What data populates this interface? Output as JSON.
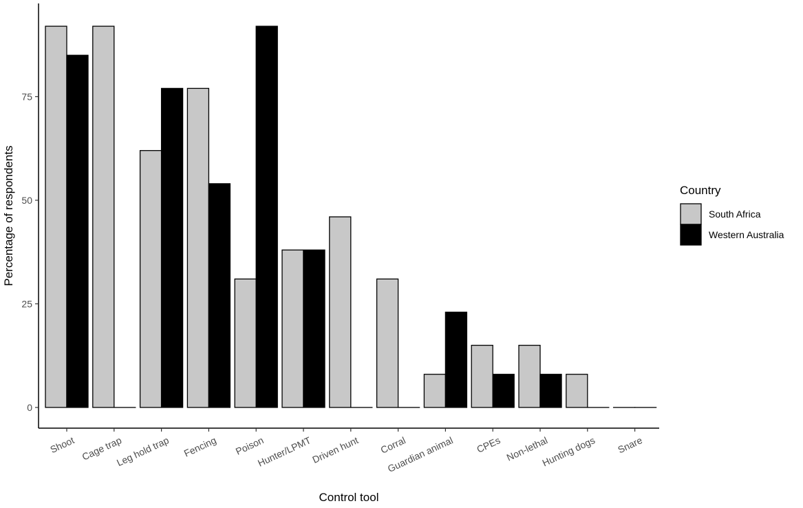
{
  "chart_data": {
    "type": "bar",
    "title": "",
    "xlabel": "Control tool",
    "ylabel": "Percentage of respondents",
    "ylim": [
      -5,
      97.5
    ],
    "yticks": [
      0,
      25,
      50,
      75
    ],
    "grid": false,
    "legend": {
      "title": "Country",
      "placement": "right"
    },
    "categories": [
      "Shoot",
      "Cage trap",
      "Leg hold trap",
      "Fencing",
      "Poison",
      "Hunter/LPMT",
      "Driven hunt",
      "Corral",
      "Guardian animal",
      "CPEs",
      "Non-lethal",
      "Hunting dogs",
      "Snare"
    ],
    "series": [
      {
        "name": "South Africa",
        "color": "#c8c8c8",
        "values": [
          92,
          92,
          62,
          77,
          31,
          38,
          46,
          31,
          8,
          15,
          15,
          8,
          0
        ]
      },
      {
        "name": "Western Australia",
        "color": "#000000",
        "values": [
          85,
          0,
          77,
          54,
          92,
          38,
          0,
          0,
          23,
          8,
          8,
          0,
          0
        ]
      }
    ]
  }
}
